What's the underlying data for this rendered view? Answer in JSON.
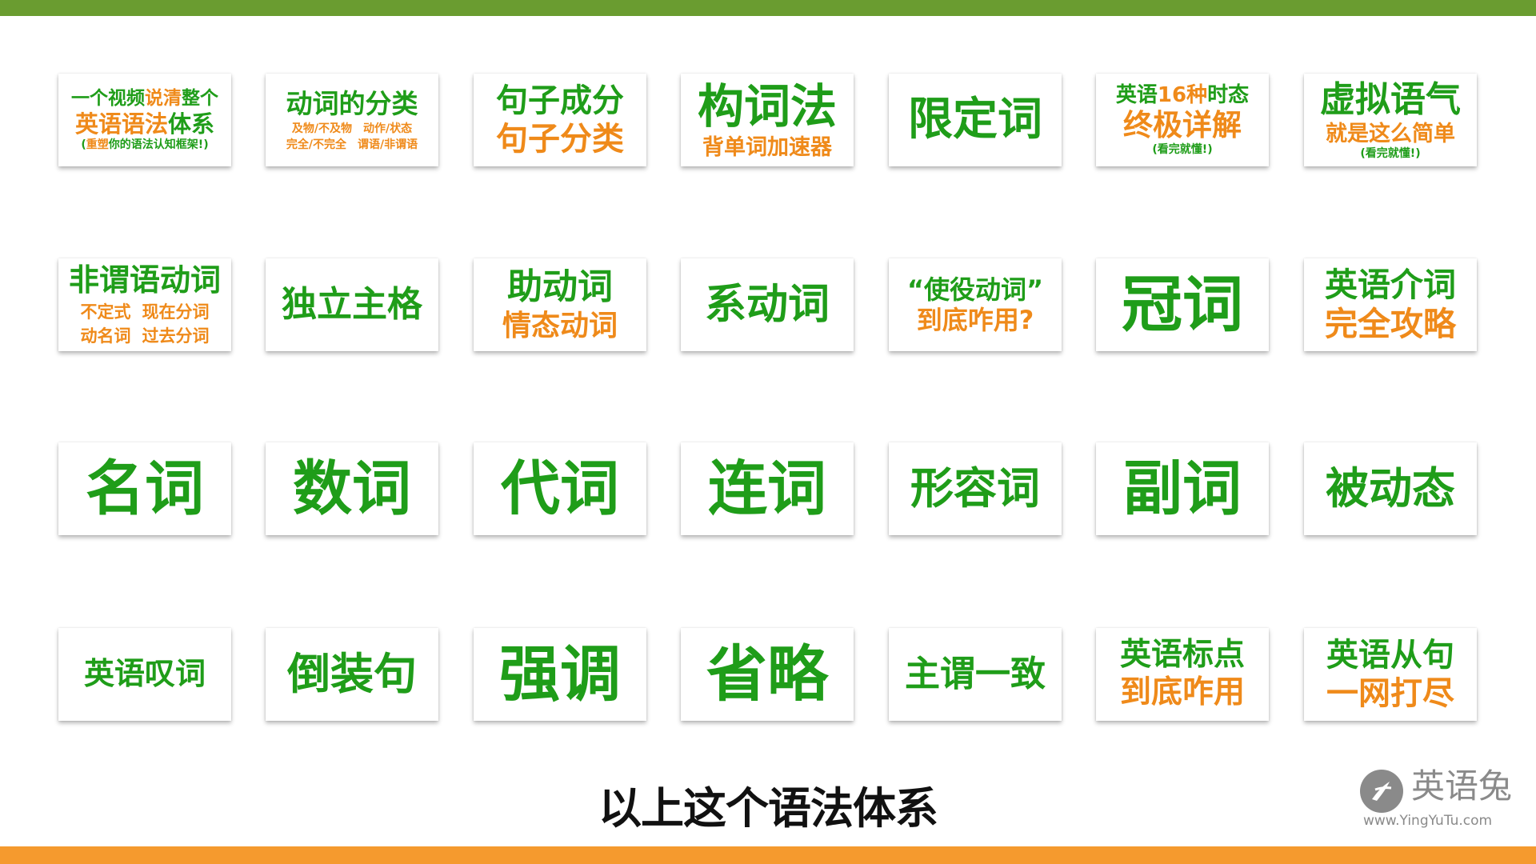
{
  "colors": {
    "top": "#6a9c30",
    "bottom": "#f59a2e",
    "green": "#1f9d19",
    "orange": "#ef8a1a"
  },
  "cards": [
    {
      "name": "card-grammar-system",
      "lines": [
        {
          "segs": [
            {
              "t": "一个视频",
              "c": "g"
            },
            {
              "t": "说清",
              "c": "o"
            },
            {
              "t": "整个",
              "c": "g"
            }
          ],
          "size": 23
        },
        {
          "segs": [
            {
              "t": "英语语法",
              "c": "o"
            },
            {
              "t": "体系",
              "c": "g"
            }
          ],
          "size": 29
        },
        {
          "segs": [
            {
              "t": "(",
              "c": "g"
            },
            {
              "t": "重塑",
              "c": "o"
            },
            {
              "t": "你的语法认知框架!",
              "c": "g"
            },
            {
              "t": ")",
              "c": "g"
            }
          ],
          "size": 14
        }
      ]
    },
    {
      "name": "card-verb-classification",
      "lines": [
        {
          "segs": [
            {
              "t": "动词的分类",
              "c": "g"
            }
          ],
          "size": 33
        },
        {
          "row": [
            {
              "t": "及物/不及物",
              "c": "o"
            },
            {
              "t": "动作/状态",
              "c": "o"
            }
          ],
          "size": 14
        },
        {
          "row": [
            {
              "t": "完全/不完全",
              "c": "o"
            },
            {
              "t": "谓语/非谓语",
              "c": "o"
            }
          ],
          "size": 14
        }
      ]
    },
    {
      "name": "card-sentence-components",
      "lines": [
        {
          "segs": [
            {
              "t": "句子成分",
              "c": "g"
            }
          ],
          "size": 40
        },
        {
          "segs": [
            {
              "t": "句子分类",
              "c": "o"
            }
          ],
          "size": 40
        }
      ]
    },
    {
      "name": "card-word-formation",
      "lines": [
        {
          "segs": [
            {
              "t": "构词法",
              "c": "g"
            }
          ],
          "size": 58
        },
        {
          "segs": [
            {
              "t": "背单词加速器",
              "c": "o"
            }
          ],
          "size": 27
        }
      ]
    },
    {
      "name": "card-determiners",
      "lines": [
        {
          "segs": [
            {
              "t": "限定词",
              "c": "g"
            }
          ],
          "size": 56
        }
      ]
    },
    {
      "name": "card-tenses",
      "lines": [
        {
          "segs": [
            {
              "t": "英语",
              "c": "g"
            },
            {
              "t": "16种",
              "c": "o"
            },
            {
              "t": "时态",
              "c": "g"
            }
          ],
          "size": 26
        },
        {
          "segs": [
            {
              "t": "终极详解",
              "c": "o"
            }
          ],
          "size": 37
        },
        {
          "segs": [
            {
              "t": "(看完就懂!)",
              "c": "g"
            }
          ],
          "size": 14
        }
      ]
    },
    {
      "name": "card-subjunctive",
      "lines": [
        {
          "segs": [
            {
              "t": "虚拟语气",
              "c": "g"
            }
          ],
          "size": 44
        },
        {
          "segs": [
            {
              "t": "就是这么简单",
              "c": "o"
            }
          ],
          "size": 27
        },
        {
          "segs": [
            {
              "t": "(看完就懂!)",
              "c": "g"
            }
          ],
          "size": 14
        }
      ]
    },
    {
      "name": "card-non-finite-verbs",
      "lines": [
        {
          "segs": [
            {
              "t": "非谓语动词",
              "c": "g"
            }
          ],
          "size": 38
        },
        {
          "row": [
            {
              "t": "不定式",
              "c": "o"
            },
            {
              "t": "现在分词",
              "c": "o"
            }
          ],
          "size": 21
        },
        {
          "row": [
            {
              "t": "动名词",
              "c": "o"
            },
            {
              "t": "过去分词",
              "c": "o"
            }
          ],
          "size": 21
        }
      ]
    },
    {
      "name": "card-absolute-construction",
      "lines": [
        {
          "segs": [
            {
              "t": "独立主格",
              "c": "g"
            }
          ],
          "size": 44
        }
      ]
    },
    {
      "name": "card-auxiliary-verbs",
      "lines": [
        {
          "segs": [
            {
              "t": "助动词",
              "c": "g"
            }
          ],
          "size": 44
        },
        {
          "segs": [
            {
              "t": "情态动词",
              "c": "o"
            }
          ],
          "size": 36
        }
      ]
    },
    {
      "name": "card-linking-verbs",
      "lines": [
        {
          "segs": [
            {
              "t": "系动词",
              "c": "g"
            }
          ],
          "size": 52
        }
      ]
    },
    {
      "name": "card-causative-verbs",
      "lines": [
        {
          "segs": [
            {
              "t": "“使役动词”",
              "c": "g"
            }
          ],
          "size": 32
        },
        {
          "segs": [
            {
              "t": "到底咋用?",
              "c": "o"
            }
          ],
          "size": 32
        }
      ]
    },
    {
      "name": "card-articles",
      "lines": [
        {
          "segs": [
            {
              "t": "冠词",
              "c": "g"
            }
          ],
          "size": 76
        }
      ]
    },
    {
      "name": "card-prepositions",
      "lines": [
        {
          "segs": [
            {
              "t": "英语介词",
              "c": "g"
            }
          ],
          "size": 41
        },
        {
          "segs": [
            {
              "t": "完全攻略",
              "c": "o"
            }
          ],
          "size": 41
        }
      ]
    },
    {
      "name": "card-nouns",
      "lines": [
        {
          "segs": [
            {
              "t": "名词",
              "c": "g"
            }
          ],
          "size": 74
        }
      ]
    },
    {
      "name": "card-numerals",
      "lines": [
        {
          "segs": [
            {
              "t": "数词",
              "c": "g"
            }
          ],
          "size": 74
        }
      ]
    },
    {
      "name": "card-pronouns",
      "lines": [
        {
          "segs": [
            {
              "t": "代词",
              "c": "g"
            }
          ],
          "size": 74
        }
      ]
    },
    {
      "name": "card-conjunctions",
      "lines": [
        {
          "segs": [
            {
              "t": "连词",
              "c": "g"
            }
          ],
          "size": 74
        }
      ]
    },
    {
      "name": "card-adjectives",
      "lines": [
        {
          "segs": [
            {
              "t": "形容词",
              "c": "g"
            }
          ],
          "size": 54
        }
      ]
    },
    {
      "name": "card-adverbs",
      "lines": [
        {
          "segs": [
            {
              "t": "副词",
              "c": "g"
            }
          ],
          "size": 74
        }
      ]
    },
    {
      "name": "card-passive-voice",
      "lines": [
        {
          "segs": [
            {
              "t": "被动态",
              "c": "g"
            }
          ],
          "size": 54
        }
      ]
    },
    {
      "name": "card-interjections",
      "lines": [
        {
          "segs": [
            {
              "t": "英语叹词",
              "c": "g"
            }
          ],
          "size": 38
        }
      ]
    },
    {
      "name": "card-inversion",
      "lines": [
        {
          "segs": [
            {
              "t": "倒装句",
              "c": "g"
            }
          ],
          "size": 54
        }
      ]
    },
    {
      "name": "card-emphasis",
      "lines": [
        {
          "segs": [
            {
              "t": "强调",
              "c": "g"
            }
          ],
          "size": 76
        }
      ]
    },
    {
      "name": "card-ellipsis",
      "lines": [
        {
          "segs": [
            {
              "t": "省略",
              "c": "g"
            }
          ],
          "size": 76
        }
      ]
    },
    {
      "name": "card-subject-verb-agreement",
      "lines": [
        {
          "segs": [
            {
              "t": "主谓一致",
              "c": "g"
            }
          ],
          "size": 44
        }
      ]
    },
    {
      "name": "card-punctuation",
      "lines": [
        {
          "segs": [
            {
              "t": "英语标点",
              "c": "g"
            }
          ],
          "size": 39
        },
        {
          "segs": [
            {
              "t": "到底咋用",
              "c": "o"
            }
          ],
          "size": 39
        }
      ]
    },
    {
      "name": "card-clauses",
      "lines": [
        {
          "segs": [
            {
              "t": "英语从句",
              "c": "g"
            }
          ],
          "size": 40
        },
        {
          "segs": [
            {
              "t": "一网打尽",
              "c": "o"
            }
          ],
          "size": 40
        }
      ]
    }
  ],
  "subtitle": "以上这个语法体系",
  "watermark": {
    "icon": "rabbit-ear-icon",
    "brand": "英语兔",
    "url": "www.YingYuTu.com"
  }
}
